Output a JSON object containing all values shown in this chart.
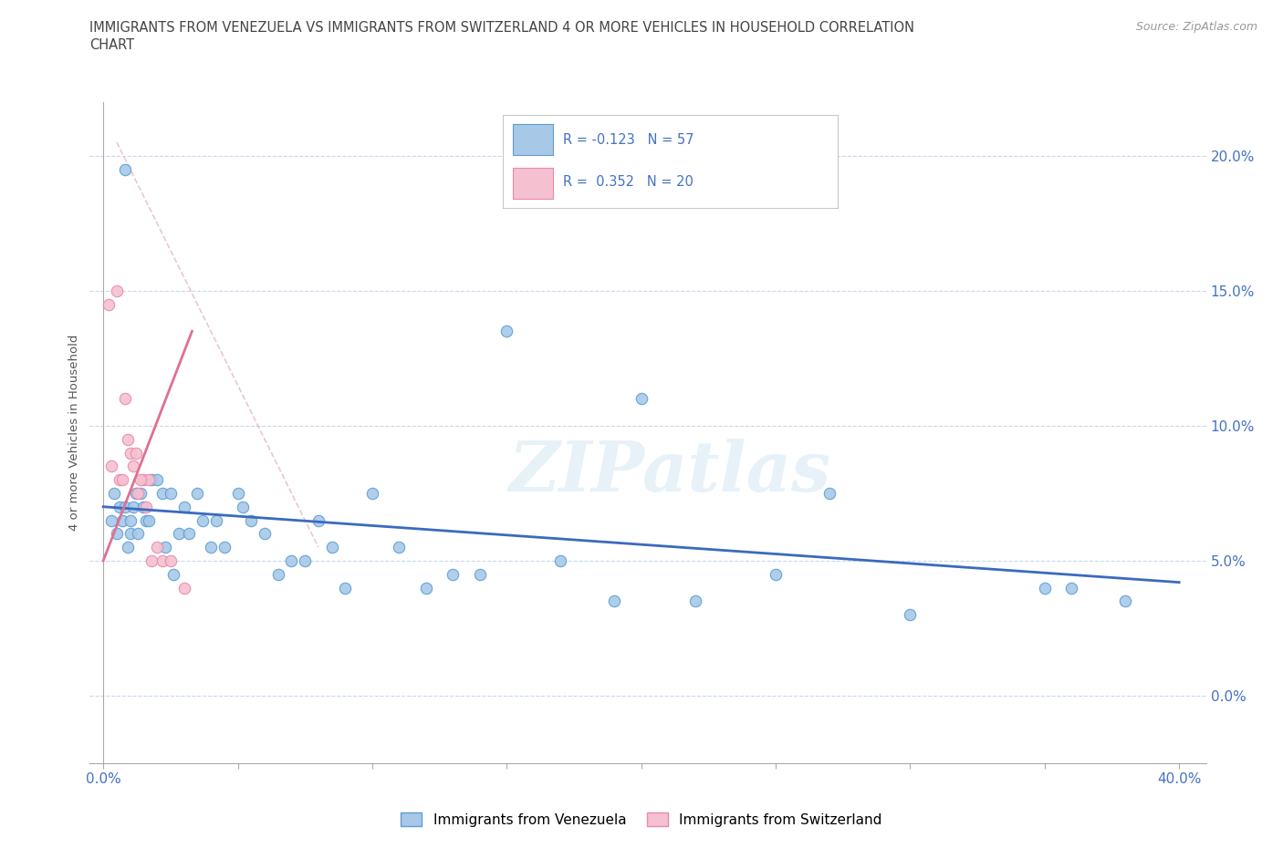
{
  "title_line1": "IMMIGRANTS FROM VENEZUELA VS IMMIGRANTS FROM SWITZERLAND 4 OR MORE VEHICLES IN HOUSEHOLD CORRELATION",
  "title_line2": "CHART",
  "source": "Source: ZipAtlas.com",
  "ylabel": "4 or more Vehicles in Household",
  "yticks": [
    0.0,
    5.0,
    10.0,
    15.0,
    20.0
  ],
  "xticks": [
    0.0,
    5.0,
    10.0,
    15.0,
    20.0,
    25.0,
    30.0,
    35.0,
    40.0
  ],
  "xlim": [
    -0.5,
    41.0
  ],
  "ylim": [
    -2.5,
    22.0
  ],
  "venezuela_color": "#a8c8e8",
  "venezuela_edge": "#5a9fd4",
  "switzerland_color": "#f5c0d0",
  "switzerland_edge": "#e88aaa",
  "trend_venezuela_color": "#3a6abf",
  "trend_switzerland_color": "#e07090",
  "trend_neutral_color": "#d8c8d8",
  "legend_r1_text": "R = -0.123   N = 57",
  "legend_r2_text": "R =  0.352   N = 20",
  "legend_color": "#4472c4",
  "bottom_legend_ven": "Immigrants from Venezuela",
  "bottom_legend_swi": "Immigrants from Switzerland",
  "venezuela_x": [
    0.3,
    0.4,
    0.5,
    0.6,
    0.7,
    0.8,
    0.9,
    1.0,
    1.0,
    1.1,
    1.2,
    1.3,
    1.4,
    1.5,
    1.6,
    1.7,
    1.8,
    2.0,
    2.2,
    2.3,
    2.5,
    2.6,
    2.8,
    3.0,
    3.2,
    3.5,
    3.7,
    4.0,
    4.2,
    4.5,
    5.0,
    5.2,
    5.5,
    6.0,
    6.5,
    7.0,
    7.5,
    8.0,
    8.5,
    9.0,
    10.0,
    11.0,
    12.0,
    13.0,
    14.0,
    15.0,
    17.0,
    20.0,
    25.0,
    27.0,
    30.0,
    35.0,
    36.0,
    38.0,
    0.8,
    19.0,
    22.0
  ],
  "venezuela_y": [
    6.5,
    7.5,
    6.0,
    7.0,
    6.5,
    7.0,
    5.5,
    6.0,
    6.5,
    7.0,
    7.5,
    6.0,
    7.5,
    7.0,
    6.5,
    6.5,
    8.0,
    8.0,
    7.5,
    5.5,
    7.5,
    4.5,
    6.0,
    7.0,
    6.0,
    7.5,
    6.5,
    5.5,
    6.5,
    5.5,
    7.5,
    7.0,
    6.5,
    6.0,
    4.5,
    5.0,
    5.0,
    6.5,
    5.5,
    4.0,
    7.5,
    5.5,
    4.0,
    4.5,
    4.5,
    13.5,
    5.0,
    11.0,
    4.5,
    7.5,
    3.0,
    4.0,
    4.0,
    3.5,
    19.5,
    3.5,
    3.5
  ],
  "switzerland_x": [
    0.2,
    0.3,
    0.5,
    0.6,
    0.7,
    0.8,
    0.9,
    1.0,
    1.1,
    1.2,
    1.3,
    1.5,
    1.6,
    1.7,
    1.8,
    2.0,
    2.2,
    2.5,
    3.0,
    1.4
  ],
  "switzerland_y": [
    14.5,
    8.5,
    15.0,
    8.0,
    8.0,
    11.0,
    9.5,
    9.0,
    8.5,
    9.0,
    7.5,
    8.0,
    7.0,
    8.0,
    5.0,
    5.5,
    5.0,
    5.0,
    4.0,
    8.0
  ],
  "venezuela_trend_x": [
    0.0,
    40.0
  ],
  "venezuela_trend_y": [
    7.0,
    4.2
  ],
  "switzerland_trend_x": [
    0.0,
    3.3
  ],
  "switzerland_trend_y": [
    5.0,
    13.5
  ],
  "neutral_trend_x": [
    0.5,
    8.0
  ],
  "neutral_trend_y": [
    20.5,
    5.5
  ],
  "watermark_text": "ZIPatlas"
}
